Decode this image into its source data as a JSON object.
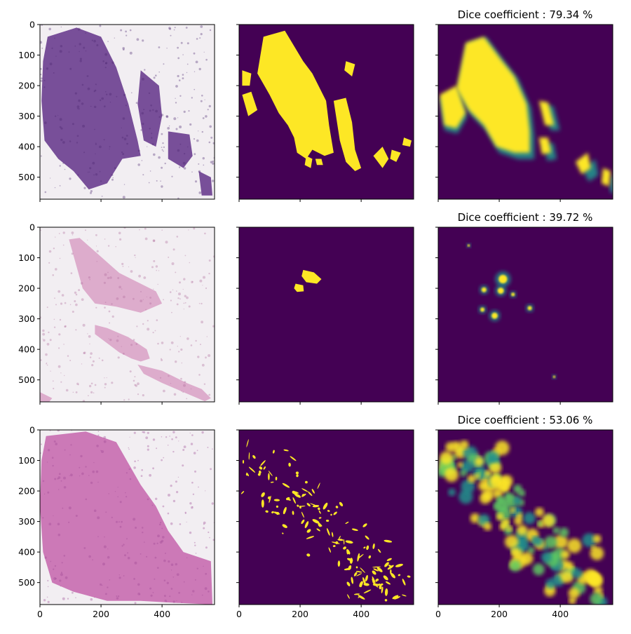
{
  "colors": {
    "mask_background": "#440154",
    "mask_foreground": "#fde725",
    "viridis": [
      "#440154",
      "#3b528b",
      "#21918c",
      "#5ec962",
      "#fde725"
    ],
    "slide_background": "#f2eef2",
    "stain_row1": "#6a3d8f",
    "stain_row2": "#d9a0c6",
    "stain_row3": "#c86cb0"
  },
  "chart_data": {
    "type": "image-grid",
    "rows": 3,
    "columns": [
      "input",
      "ground_truth",
      "prediction"
    ],
    "xlim": [
      0,
      572
    ],
    "ylim": [
      572,
      0
    ],
    "ticks": [
      0,
      100,
      200,
      300,
      400,
      500
    ],
    "xtick_labels": [
      "0",
      "200",
      "400"
    ],
    "ytick_labels": [
      "0",
      "100",
      "200",
      "300",
      "400",
      "500"
    ],
    "titles": [
      "Dice coefficient : 79.34 %",
      "Dice coefficient : 39.72 %",
      "Dice coefficient : 53.06 %"
    ],
    "dice_coefficient_percent": [
      79.34,
      39.72,
      53.06
    ]
  }
}
